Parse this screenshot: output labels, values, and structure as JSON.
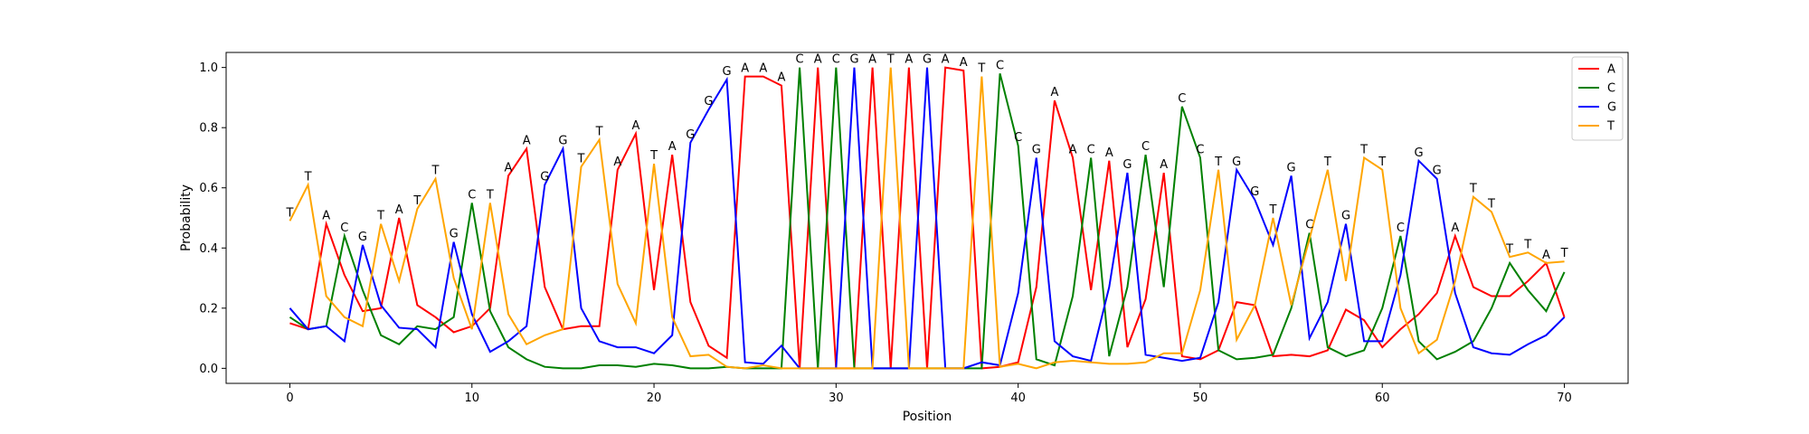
{
  "chart_data": {
    "type": "line",
    "title": "",
    "xlabel": "Position",
    "ylabel": "Probability",
    "xlim": [
      -3.5,
      73.5
    ],
    "ylim": [
      -0.05,
      1.05
    ],
    "xticks": [
      0,
      10,
      20,
      30,
      40,
      50,
      60,
      70
    ],
    "yticks": [
      0.0,
      0.2,
      0.4,
      0.6,
      0.8,
      1.0
    ],
    "xtick_labels": [
      "0",
      "10",
      "20",
      "30",
      "40",
      "50",
      "60",
      "70"
    ],
    "ytick_labels": [
      "0.0",
      "0.2",
      "0.4",
      "0.6",
      "0.8",
      "1.0"
    ],
    "legend_position": "top-right",
    "grid": false,
    "x": [
      0,
      1,
      2,
      3,
      4,
      5,
      6,
      7,
      8,
      9,
      10,
      11,
      12,
      13,
      14,
      15,
      16,
      17,
      18,
      19,
      20,
      21,
      22,
      23,
      24,
      25,
      26,
      27,
      28,
      29,
      30,
      31,
      32,
      33,
      34,
      35,
      36,
      37,
      38,
      39,
      40,
      41,
      42,
      43,
      44,
      45,
      46,
      47,
      48,
      49,
      50,
      51,
      52,
      53,
      54,
      55,
      56,
      57,
      58,
      59,
      60,
      61,
      62,
      63,
      64,
      65,
      66,
      67,
      68,
      69,
      70
    ],
    "series": [
      {
        "name": "A",
        "color": "#ff0000",
        "values": [
          0.15,
          0.13,
          0.48,
          0.31,
          0.19,
          0.2,
          0.5,
          0.21,
          0.17,
          0.12,
          0.14,
          0.2,
          0.64,
          0.73,
          0.27,
          0.13,
          0.14,
          0.14,
          0.66,
          0.78,
          0.26,
          0.71,
          0.22,
          0.075,
          0.035,
          0.97,
          0.97,
          0.94,
          0,
          1.0,
          0,
          0,
          1.0,
          0,
          1.0,
          0,
          1.0,
          0.99,
          0,
          0.005,
          0.02,
          0.27,
          0.89,
          0.7,
          0.26,
          0.69,
          0.07,
          0.23,
          0.65,
          0.04,
          0.03,
          0.06,
          0.22,
          0.21,
          0.04,
          0.045,
          0.04,
          0.06,
          0.195,
          0.16,
          0.07,
          0.13,
          0.18,
          0.25,
          0.44,
          0.27,
          0.24,
          0.24,
          0.29,
          0.35,
          0.17
        ]
      },
      {
        "name": "C",
        "color": "#008000",
        "values": [
          0.17,
          0.13,
          0.14,
          0.44,
          0.26,
          0.11,
          0.08,
          0.14,
          0.13,
          0.17,
          0.55,
          0.19,
          0.07,
          0.03,
          0.005,
          0,
          0,
          0.01,
          0.01,
          0.005,
          0.015,
          0.01,
          0,
          0,
          0.005,
          0,
          0,
          0,
          1.0,
          0,
          1.0,
          0,
          0,
          0,
          0,
          0,
          0,
          0,
          0,
          0.98,
          0.74,
          0.03,
          0.01,
          0.24,
          0.7,
          0.04,
          0.27,
          0.71,
          0.27,
          0.87,
          0.7,
          0.06,
          0.03,
          0.035,
          0.045,
          0.2,
          0.45,
          0.07,
          0.04,
          0.06,
          0.2,
          0.44,
          0.09,
          0.03,
          0.055,
          0.09,
          0.2,
          0.35,
          0.26,
          0.19,
          0.32
        ]
      },
      {
        "name": "G",
        "color": "#0000ff",
        "values": [
          0.2,
          0.13,
          0.14,
          0.09,
          0.41,
          0.21,
          0.135,
          0.13,
          0.07,
          0.42,
          0.18,
          0.055,
          0.09,
          0.14,
          0.61,
          0.73,
          0.2,
          0.09,
          0.07,
          0.07,
          0.05,
          0.11,
          0.75,
          0.86,
          0.96,
          0.02,
          0.015,
          0.075,
          0,
          0,
          0,
          1.0,
          0,
          0,
          0,
          1.0,
          0,
          0,
          0.02,
          0.01,
          0.25,
          0.7,
          0.09,
          0.04,
          0.025,
          0.27,
          0.65,
          0.045,
          0.035,
          0.025,
          0.035,
          0.22,
          0.66,
          0.56,
          0.41,
          0.64,
          0.1,
          0.22,
          0.48,
          0.09,
          0.09,
          0.31,
          0.69,
          0.63,
          0.25,
          0.07,
          0.05,
          0.045,
          0.08,
          0.11,
          0.17
        ]
      },
      {
        "name": "T",
        "color": "#ffa500",
        "values": [
          0.49,
          0.61,
          0.24,
          0.17,
          0.14,
          0.48,
          0.29,
          0.53,
          0.63,
          0.3,
          0.13,
          0.55,
          0.18,
          0.08,
          0.11,
          0.13,
          0.67,
          0.76,
          0.28,
          0.15,
          0.68,
          0.17,
          0.04,
          0.045,
          0.005,
          0,
          0.01,
          0,
          0,
          0,
          0,
          0,
          0,
          1.0,
          0,
          0,
          0,
          0,
          0.97,
          0.005,
          0.015,
          0,
          0.02,
          0.025,
          0.02,
          0.015,
          0.015,
          0.02,
          0.05,
          0.05,
          0.26,
          0.66,
          0.095,
          0.21,
          0.5,
          0.21,
          0.43,
          0.66,
          0.29,
          0.7,
          0.66,
          0.2,
          0.05,
          0.095,
          0.29,
          0.57,
          0.52,
          0.37,
          0.385,
          0.35,
          0.355
        ]
      }
    ],
    "base_labels": [
      "T",
      "T",
      "A",
      "C",
      "G",
      "T",
      "A",
      "T",
      "T",
      "G",
      "C",
      "T",
      "A",
      "A",
      "G",
      "G",
      "T",
      "T",
      "A",
      "A",
      "T",
      "A",
      "G",
      "G",
      "G",
      "A",
      "A",
      "A",
      "C",
      "A",
      "C",
      "G",
      "A",
      "T",
      "A",
      "G",
      "A",
      "A",
      "T",
      "C",
      "C",
      "G",
      "A",
      "A",
      "C",
      "A",
      "G",
      "C",
      "A",
      "C",
      "C",
      "T",
      "G",
      "G",
      "T",
      "G",
      "C",
      "T",
      "G",
      "T",
      "T",
      "C",
      "G",
      "G",
      "A",
      "T",
      "T",
      "T",
      "T",
      "A",
      "T"
    ]
  }
}
